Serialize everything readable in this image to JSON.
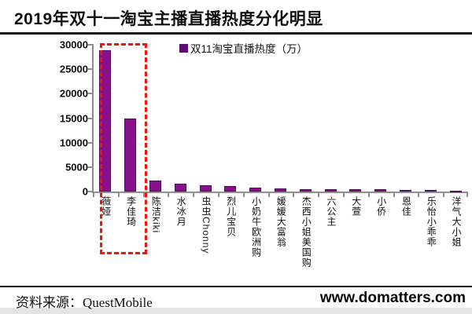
{
  "title": "2019年双十一淘宝主播直播热度分化明显",
  "legend": "双11淘宝直播热度（万）",
  "source": "资料来源：QuestMobile",
  "watermark": "www.domatters.com",
  "colors": {
    "bar_fill": "#8a0f8a",
    "bar_border": "#47115e",
    "legend_marker": "#5c0d6e",
    "highlight_box": "#f2150a",
    "axis": "#8f8f8f"
  },
  "chart_data": {
    "type": "bar",
    "title": "2019年双十一淘宝主播直播热度分化明显",
    "series_name": "双11淘宝直播热度（万）",
    "categories": [
      "薇娅",
      "李佳琦",
      "陈洁kiki",
      "水冰月",
      "虫虫Chonny",
      "烈儿宝贝",
      "小奶牛欧洲购",
      "媛媛大富翁",
      "杰西小姐美国购",
      "六公主",
      "大萱",
      "小侨",
      "恩佳",
      "乐怡小乖乖",
      "洋气大小姐"
    ],
    "values": [
      28900,
      15000,
      2300,
      1650,
      1300,
      1050,
      800,
      620,
      560,
      500,
      450,
      420,
      350,
      330,
      170
    ],
    "xlabel": "",
    "ylabel": "",
    "ylim": [
      0,
      30000
    ],
    "ytick_step": 5000,
    "grid": false,
    "legend_position": "top",
    "annotations": {
      "highlight_box_categories": [
        "薇娅",
        "李佳琦"
      ]
    }
  }
}
